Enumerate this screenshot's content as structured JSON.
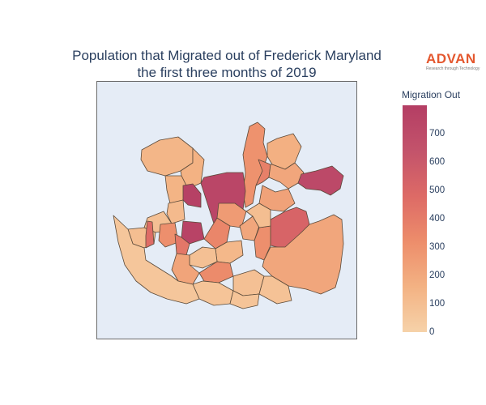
{
  "title": {
    "line1": "Population that Migrated out of Frederick Maryland",
    "line2": "the first three months of 2019"
  },
  "logo": {
    "name": "ADVAN",
    "tagline": "Research through Technology",
    "color": "#e4572e"
  },
  "colorbar": {
    "title": "Migration Out",
    "min": 0,
    "max": 800,
    "ticks": [
      "0",
      "100",
      "200",
      "300",
      "400",
      "500",
      "600",
      "700"
    ],
    "colors": [
      "#f6d2a9",
      "#f3b283",
      "#ed8d6b",
      "#dd6a66",
      "#c3536b",
      "#b43e64"
    ]
  },
  "map": {
    "background": "#e5ecf6",
    "border_color": "#6b6b6b",
    "regions": [
      {
        "name": "north-spike",
        "value": 300
      },
      {
        "name": "north-center-left",
        "value": 140
      },
      {
        "name": "north-center-mid",
        "value": 160
      },
      {
        "name": "north-center-small",
        "value": 380
      },
      {
        "name": "northwest-a",
        "value": 150
      },
      {
        "name": "northwest-b",
        "value": 120
      },
      {
        "name": "northwest-c",
        "value": 170
      },
      {
        "name": "northeast-mid",
        "value": 210
      },
      {
        "name": "northeast-east",
        "value": 720
      },
      {
        "name": "central-large",
        "value": 740
      },
      {
        "name": "central-west-small",
        "value": 780
      },
      {
        "name": "west-mid",
        "value": 90
      },
      {
        "name": "west-a",
        "value": 100
      },
      {
        "name": "west-b",
        "value": 470
      },
      {
        "name": "west-c",
        "value": 310
      },
      {
        "name": "west-d",
        "value": 760
      },
      {
        "name": "west-e",
        "value": 420
      },
      {
        "name": "center-a",
        "value": 350
      },
      {
        "name": "center-b",
        "value": 260
      },
      {
        "name": "center-c",
        "value": 210
      },
      {
        "name": "center-d",
        "value": 130
      },
      {
        "name": "center-e",
        "value": 90
      },
      {
        "name": "central-east-a",
        "value": 230
      },
      {
        "name": "east-red",
        "value": 520
      },
      {
        "name": "east-orange",
        "value": 310
      },
      {
        "name": "southeast-large",
        "value": 210
      },
      {
        "name": "south-a",
        "value": 220
      },
      {
        "name": "south-b",
        "value": 330
      },
      {
        "name": "south-c",
        "value": 90
      },
      {
        "name": "south-d",
        "value": 70
      },
      {
        "name": "southwest",
        "value": 60
      },
      {
        "name": "south-east-small",
        "value": 80
      },
      {
        "name": "south-center",
        "value": 70
      },
      {
        "name": "center-strip",
        "value": 100
      }
    ]
  }
}
